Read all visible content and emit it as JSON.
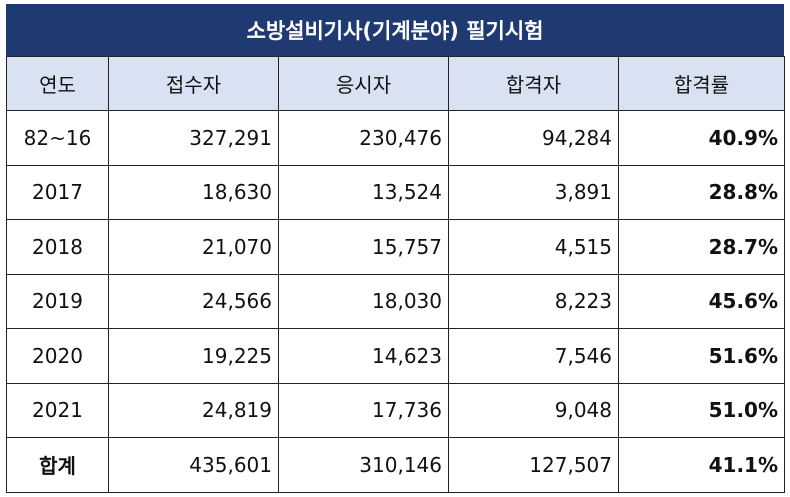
{
  "title": "소방설비기사(기계분야) 필기시험",
  "headers": [
    "연도",
    "접수자",
    "응시자",
    "합격자",
    "합격률"
  ],
  "rows": [
    {
      "year": "82~16",
      "applied": "327,291",
      "taken": "230,476",
      "passed": "94,284",
      "rate": "40.9%"
    },
    {
      "year": "2017",
      "applied": "18,630",
      "taken": "13,524",
      "passed": "3,891",
      "rate": "28.8%"
    },
    {
      "year": "2018",
      "applied": "21,070",
      "taken": "15,757",
      "passed": "4,515",
      "rate": "28.7%"
    },
    {
      "year": "2019",
      "applied": "24,566",
      "taken": "18,030",
      "passed": "8,223",
      "rate": "45.6%"
    },
    {
      "year": "2020",
      "applied": "19,225",
      "taken": "14,623",
      "passed": "7,546",
      "rate": "51.6%"
    },
    {
      "year": "2021",
      "applied": "24,819",
      "taken": "17,736",
      "passed": "9,048",
      "rate": "51.0%"
    }
  ],
  "total": {
    "year": "합계",
    "applied": "435,601",
    "taken": "310,146",
    "passed": "127,507",
    "rate": "41.1%"
  }
}
